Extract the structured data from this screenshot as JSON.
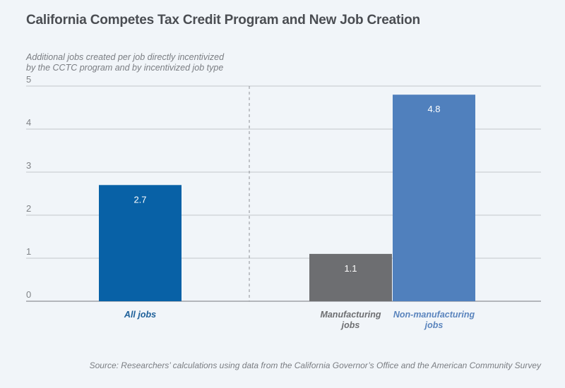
{
  "chart_data": {
    "type": "bar",
    "title": "California Competes Tax Credit Program and New Job Creation",
    "subtitle_lines": [
      "Additional jobs created per job directly incentivized",
      "by the CCTC program and by incentivized job type"
    ],
    "ylabel": "Additional jobs created per job directly incentivized by the CCTC program and by incentivized job type",
    "xlabel": "",
    "ylim": [
      0,
      5
    ],
    "yticks": [
      0,
      1,
      2,
      3,
      4,
      5
    ],
    "grid": true,
    "groups": [
      {
        "name": "all",
        "bars": [
          {
            "category": "All jobs",
            "label_lines": [
              "All jobs"
            ],
            "value": 2.7,
            "value_label": "2.7",
            "color": "#0861a6",
            "label_color": "#1d5f99"
          }
        ]
      },
      {
        "name": "by-type",
        "bars": [
          {
            "category": "Manufacturing jobs",
            "label_lines": [
              "Manufacturing",
              "jobs"
            ],
            "value": 1.1,
            "value_label": "1.1",
            "color": "#6d6e71",
            "label_color": "#6d6e71"
          },
          {
            "category": "Non-manufacturing jobs",
            "label_lines": [
              "Non-manufacturing",
              "jobs"
            ],
            "value": 4.8,
            "value_label": "4.8",
            "color": "#5080bd",
            "label_color": "#5a84bd"
          }
        ]
      }
    ],
    "source": "Source: Researchers’ calculations using data from the California Governor’s Office and the American Community Survey"
  }
}
